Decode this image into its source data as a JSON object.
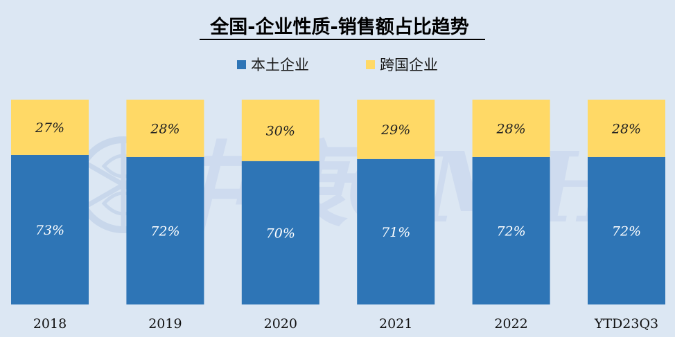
{
  "chart_data": {
    "type": "bar",
    "stacked": true,
    "percent": true,
    "title": "全国-企业性质-销售额占比趋势",
    "categories": [
      "2018",
      "2019",
      "2020",
      "2021",
      "2022",
      "YTD23Q3"
    ],
    "series": [
      {
        "name": "本土企业",
        "values": [
          73,
          72,
          70,
          71,
          72,
          72
        ],
        "labels": [
          "73%",
          "72%",
          "70%",
          "71%",
          "72%",
          "72%"
        ],
        "color": "#2e75b6"
      },
      {
        "name": "跨国企业",
        "values": [
          27,
          28,
          30,
          29,
          28,
          28
        ],
        "labels": [
          "27%",
          "28%",
          "30%",
          "29%",
          "28%",
          "28%"
        ],
        "color": "#ffd966"
      }
    ],
    "legend_position": "top",
    "ylim": [
      0,
      100
    ],
    "grid": false
  },
  "colors": {
    "background": "#dce7f3",
    "domestic": "#2e75b6",
    "multinational": "#ffd966",
    "watermark": "#c4d3ec"
  },
  "watermark_text": "中康CMH"
}
